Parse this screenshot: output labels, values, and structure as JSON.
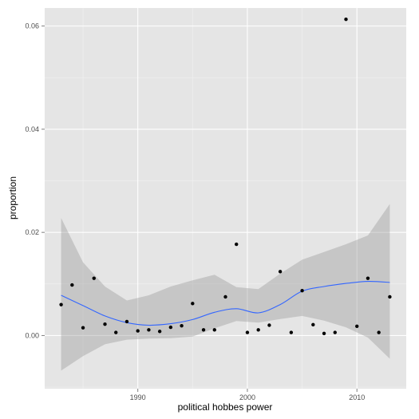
{
  "chart_data": {
    "type": "scatter",
    "title": "",
    "xlabel": "political hobbes power",
    "ylabel": "proportion",
    "xlim": [
      1981.5,
      2014.5
    ],
    "ylim": [
      -0.0103,
      0.0635
    ],
    "x_ticks": [
      1990,
      2000,
      2010
    ],
    "x_tick_labels": [
      "1990",
      "2000",
      "2010"
    ],
    "y_ticks": [
      0.0,
      0.02,
      0.04,
      0.06
    ],
    "y_tick_labels": [
      "0.00",
      "0.02",
      "0.04",
      "0.06"
    ],
    "grid": true,
    "legend": "none",
    "series": [
      {
        "points": [
          [
            1983,
            0.006
          ],
          [
            1984,
            0.0098
          ],
          [
            1985,
            0.0015
          ],
          [
            1986,
            0.0111
          ],
          [
            1987,
            0.0022
          ],
          [
            1988,
            0.0006
          ],
          [
            1989,
            0.0027
          ],
          [
            1990,
            0.0009
          ],
          [
            1991,
            0.0011
          ],
          [
            1992,
            0.0008
          ],
          [
            1993,
            0.0016
          ],
          [
            1994,
            0.0019
          ],
          [
            1995,
            0.0062
          ],
          [
            1996,
            0.0011
          ],
          [
            1997,
            0.0011
          ],
          [
            1998,
            0.0075
          ],
          [
            1999,
            0.0177
          ],
          [
            2000,
            0.0006
          ],
          [
            2001,
            0.0011
          ],
          [
            2002,
            0.002
          ],
          [
            2003,
            0.0124
          ],
          [
            2004,
            0.0006
          ],
          [
            2005,
            0.0087
          ],
          [
            2006,
            0.0021
          ],
          [
            2007,
            0.0004
          ],
          [
            2008,
            0.0006
          ],
          [
            2009,
            0.0613
          ],
          [
            2010,
            0.0018
          ],
          [
            2011,
            0.0111
          ],
          [
            2012,
            0.0006
          ],
          [
            2013,
            0.0075
          ]
        ]
      }
    ],
    "smooth": {
      "x": [
        1983,
        1985,
        1987,
        1989,
        1991,
        1993,
        1995,
        1997,
        1999,
        2001,
        2003,
        2005,
        2007,
        2009,
        2011,
        2013
      ],
      "y": [
        0.0078,
        0.0058,
        0.0038,
        0.0025,
        0.002,
        0.0023,
        0.0031,
        0.0045,
        0.0052,
        0.0044,
        0.006,
        0.0086,
        0.0095,
        0.0101,
        0.0105,
        0.0103
      ],
      "lower": [
        -0.0068,
        -0.004,
        -0.0017,
        -0.0008,
        -0.0006,
        -0.0005,
        -0.0002,
        0.0014,
        0.0028,
        0.0025,
        0.0032,
        0.0038,
        0.0029,
        0.0016,
        -0.0004,
        -0.0045
      ],
      "upper": [
        0.0228,
        0.0142,
        0.0095,
        0.0068,
        0.0078,
        0.0095,
        0.0107,
        0.0118,
        0.0094,
        0.009,
        0.012,
        0.0147,
        0.0162,
        0.0177,
        0.0194,
        0.0255
      ]
    },
    "colors": {
      "panel": "#e5e5e5",
      "grid_major": "#ffffff",
      "grid_minor": "#f2f2f2",
      "point": "#000000",
      "line": "#3366ff",
      "ribbon": "#999999"
    }
  }
}
